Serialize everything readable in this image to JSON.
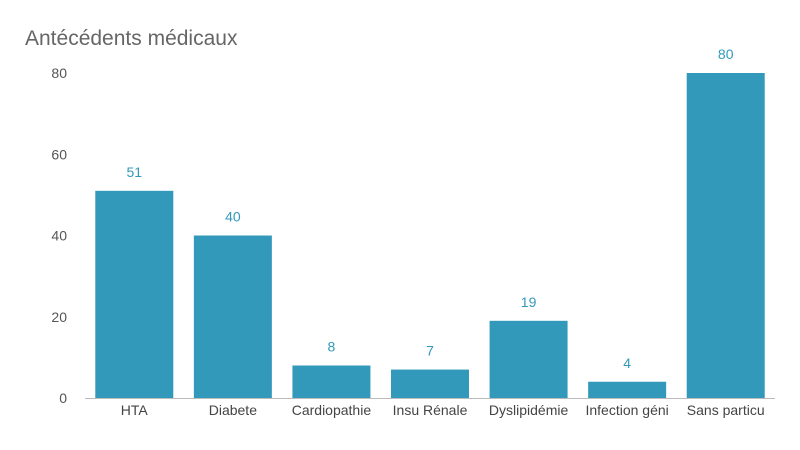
{
  "chart_data": {
    "type": "bar",
    "title": "Antécédents médicaux",
    "categories": [
      "HTA",
      "Diabete",
      "Cardiopathie",
      "Insu Rénale",
      "Dyslipidémie",
      "Infection géni",
      "Sans particu"
    ],
    "values": [
      51,
      40,
      8,
      7,
      19,
      4,
      80
    ],
    "yticks": [
      0,
      20,
      40,
      60,
      80
    ],
    "ylim": [
      0,
      80
    ],
    "grid": false,
    "bar_color": "#3399bb",
    "label_color": "#3399bb",
    "xlabel": "",
    "ylabel": ""
  }
}
